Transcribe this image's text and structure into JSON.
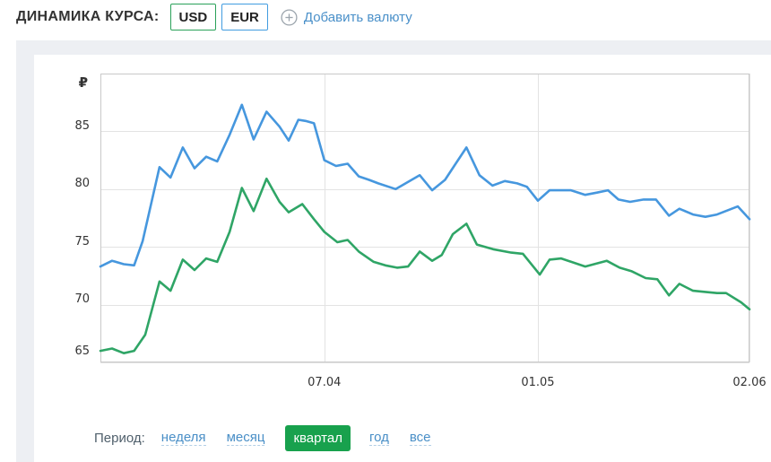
{
  "header": {
    "title": "ДИНАМИКА КУРСА:",
    "currencies": [
      {
        "label": "USD",
        "accent": "#2aa159"
      },
      {
        "label": "EUR",
        "accent": "#429ce0"
      }
    ],
    "add_currency_label": "Добавить валюту",
    "link_color": "#4a90c9"
  },
  "period": {
    "label": "Период:",
    "options": [
      {
        "key": "week",
        "label": "неделя"
      },
      {
        "key": "month",
        "label": "месяц"
      },
      {
        "key": "quarter",
        "label": "квартал"
      },
      {
        "key": "year",
        "label": "год"
      },
      {
        "key": "all",
        "label": "все"
      }
    ],
    "selected": "quarter",
    "selected_bg": "#18a14d"
  },
  "chart_data": {
    "type": "line",
    "currency_axis_symbol": "₽",
    "ylim": [
      65,
      90
    ],
    "y_ticks": [
      85,
      80,
      75,
      70,
      65
    ],
    "x_ticks": [
      {
        "label": "07.04",
        "pos": 0.345
      },
      {
        "label": "01.05",
        "pos": 0.674
      },
      {
        "label": "02.06",
        "pos": 1.0
      }
    ],
    "grid_color": "#e3e3e3",
    "border_color": "#c9c9c9",
    "legend": "off",
    "series": [
      {
        "name": "EUR",
        "color": "#4697de",
        "points": [
          [
            0.0,
            73.3
          ],
          [
            0.018,
            73.8
          ],
          [
            0.036,
            73.5
          ],
          [
            0.052,
            73.4
          ],
          [
            0.065,
            75.5
          ],
          [
            0.091,
            81.9
          ],
          [
            0.108,
            81.0
          ],
          [
            0.127,
            83.6
          ],
          [
            0.145,
            81.8
          ],
          [
            0.163,
            82.8
          ],
          [
            0.18,
            82.4
          ],
          [
            0.199,
            84.7
          ],
          [
            0.218,
            87.3
          ],
          [
            0.236,
            84.3
          ],
          [
            0.256,
            86.7
          ],
          [
            0.276,
            85.4
          ],
          [
            0.29,
            84.2
          ],
          [
            0.305,
            86.0
          ],
          [
            0.316,
            85.9
          ],
          [
            0.329,
            85.7
          ],
          [
            0.345,
            82.5
          ],
          [
            0.363,
            82.0
          ],
          [
            0.381,
            82.2
          ],
          [
            0.398,
            81.1
          ],
          [
            0.414,
            80.8
          ],
          [
            0.428,
            80.5
          ],
          [
            0.455,
            80.0
          ],
          [
            0.492,
            81.2
          ],
          [
            0.511,
            79.9
          ],
          [
            0.531,
            80.8
          ],
          [
            0.545,
            82.0
          ],
          [
            0.564,
            83.6
          ],
          [
            0.584,
            81.2
          ],
          [
            0.604,
            80.3
          ],
          [
            0.623,
            80.7
          ],
          [
            0.642,
            80.5
          ],
          [
            0.657,
            80.2
          ],
          [
            0.674,
            79.0
          ],
          [
            0.692,
            79.9
          ],
          [
            0.71,
            79.9
          ],
          [
            0.725,
            79.9
          ],
          [
            0.747,
            79.5
          ],
          [
            0.765,
            79.7
          ],
          [
            0.782,
            79.9
          ],
          [
            0.798,
            79.1
          ],
          [
            0.816,
            78.9
          ],
          [
            0.837,
            79.1
          ],
          [
            0.856,
            79.1
          ],
          [
            0.876,
            77.7
          ],
          [
            0.892,
            78.3
          ],
          [
            0.913,
            77.8
          ],
          [
            0.932,
            77.6
          ],
          [
            0.95,
            77.8
          ],
          [
            0.982,
            78.5
          ],
          [
            1.0,
            77.4
          ]
        ]
      },
      {
        "name": "USD",
        "color": "#2fa566",
        "points": [
          [
            0.0,
            66.0
          ],
          [
            0.018,
            66.2
          ],
          [
            0.036,
            65.8
          ],
          [
            0.052,
            66.0
          ],
          [
            0.069,
            67.4
          ],
          [
            0.091,
            72.0
          ],
          [
            0.108,
            71.2
          ],
          [
            0.127,
            73.9
          ],
          [
            0.145,
            73.0
          ],
          [
            0.163,
            74.0
          ],
          [
            0.18,
            73.7
          ],
          [
            0.199,
            76.3
          ],
          [
            0.218,
            80.1
          ],
          [
            0.236,
            78.1
          ],
          [
            0.256,
            80.9
          ],
          [
            0.276,
            78.9
          ],
          [
            0.29,
            78.0
          ],
          [
            0.311,
            78.7
          ],
          [
            0.329,
            77.4
          ],
          [
            0.345,
            76.3
          ],
          [
            0.365,
            75.4
          ],
          [
            0.381,
            75.6
          ],
          [
            0.398,
            74.6
          ],
          [
            0.421,
            73.7
          ],
          [
            0.439,
            73.4
          ],
          [
            0.457,
            73.2
          ],
          [
            0.474,
            73.3
          ],
          [
            0.492,
            74.6
          ],
          [
            0.511,
            73.8
          ],
          [
            0.526,
            74.3
          ],
          [
            0.543,
            76.1
          ],
          [
            0.564,
            77.0
          ],
          [
            0.58,
            75.2
          ],
          [
            0.605,
            74.8
          ],
          [
            0.633,
            74.5
          ],
          [
            0.651,
            74.4
          ],
          [
            0.677,
            72.6
          ],
          [
            0.692,
            73.9
          ],
          [
            0.71,
            74.0
          ],
          [
            0.747,
            73.3
          ],
          [
            0.78,
            73.8
          ],
          [
            0.8,
            73.2
          ],
          [
            0.818,
            72.9
          ],
          [
            0.84,
            72.3
          ],
          [
            0.858,
            72.2
          ],
          [
            0.876,
            70.8
          ],
          [
            0.892,
            71.8
          ],
          [
            0.913,
            71.2
          ],
          [
            0.932,
            71.1
          ],
          [
            0.95,
            71.0
          ],
          [
            0.964,
            71.0
          ],
          [
            0.987,
            70.2
          ],
          [
            1.0,
            69.6
          ]
        ]
      }
    ]
  }
}
